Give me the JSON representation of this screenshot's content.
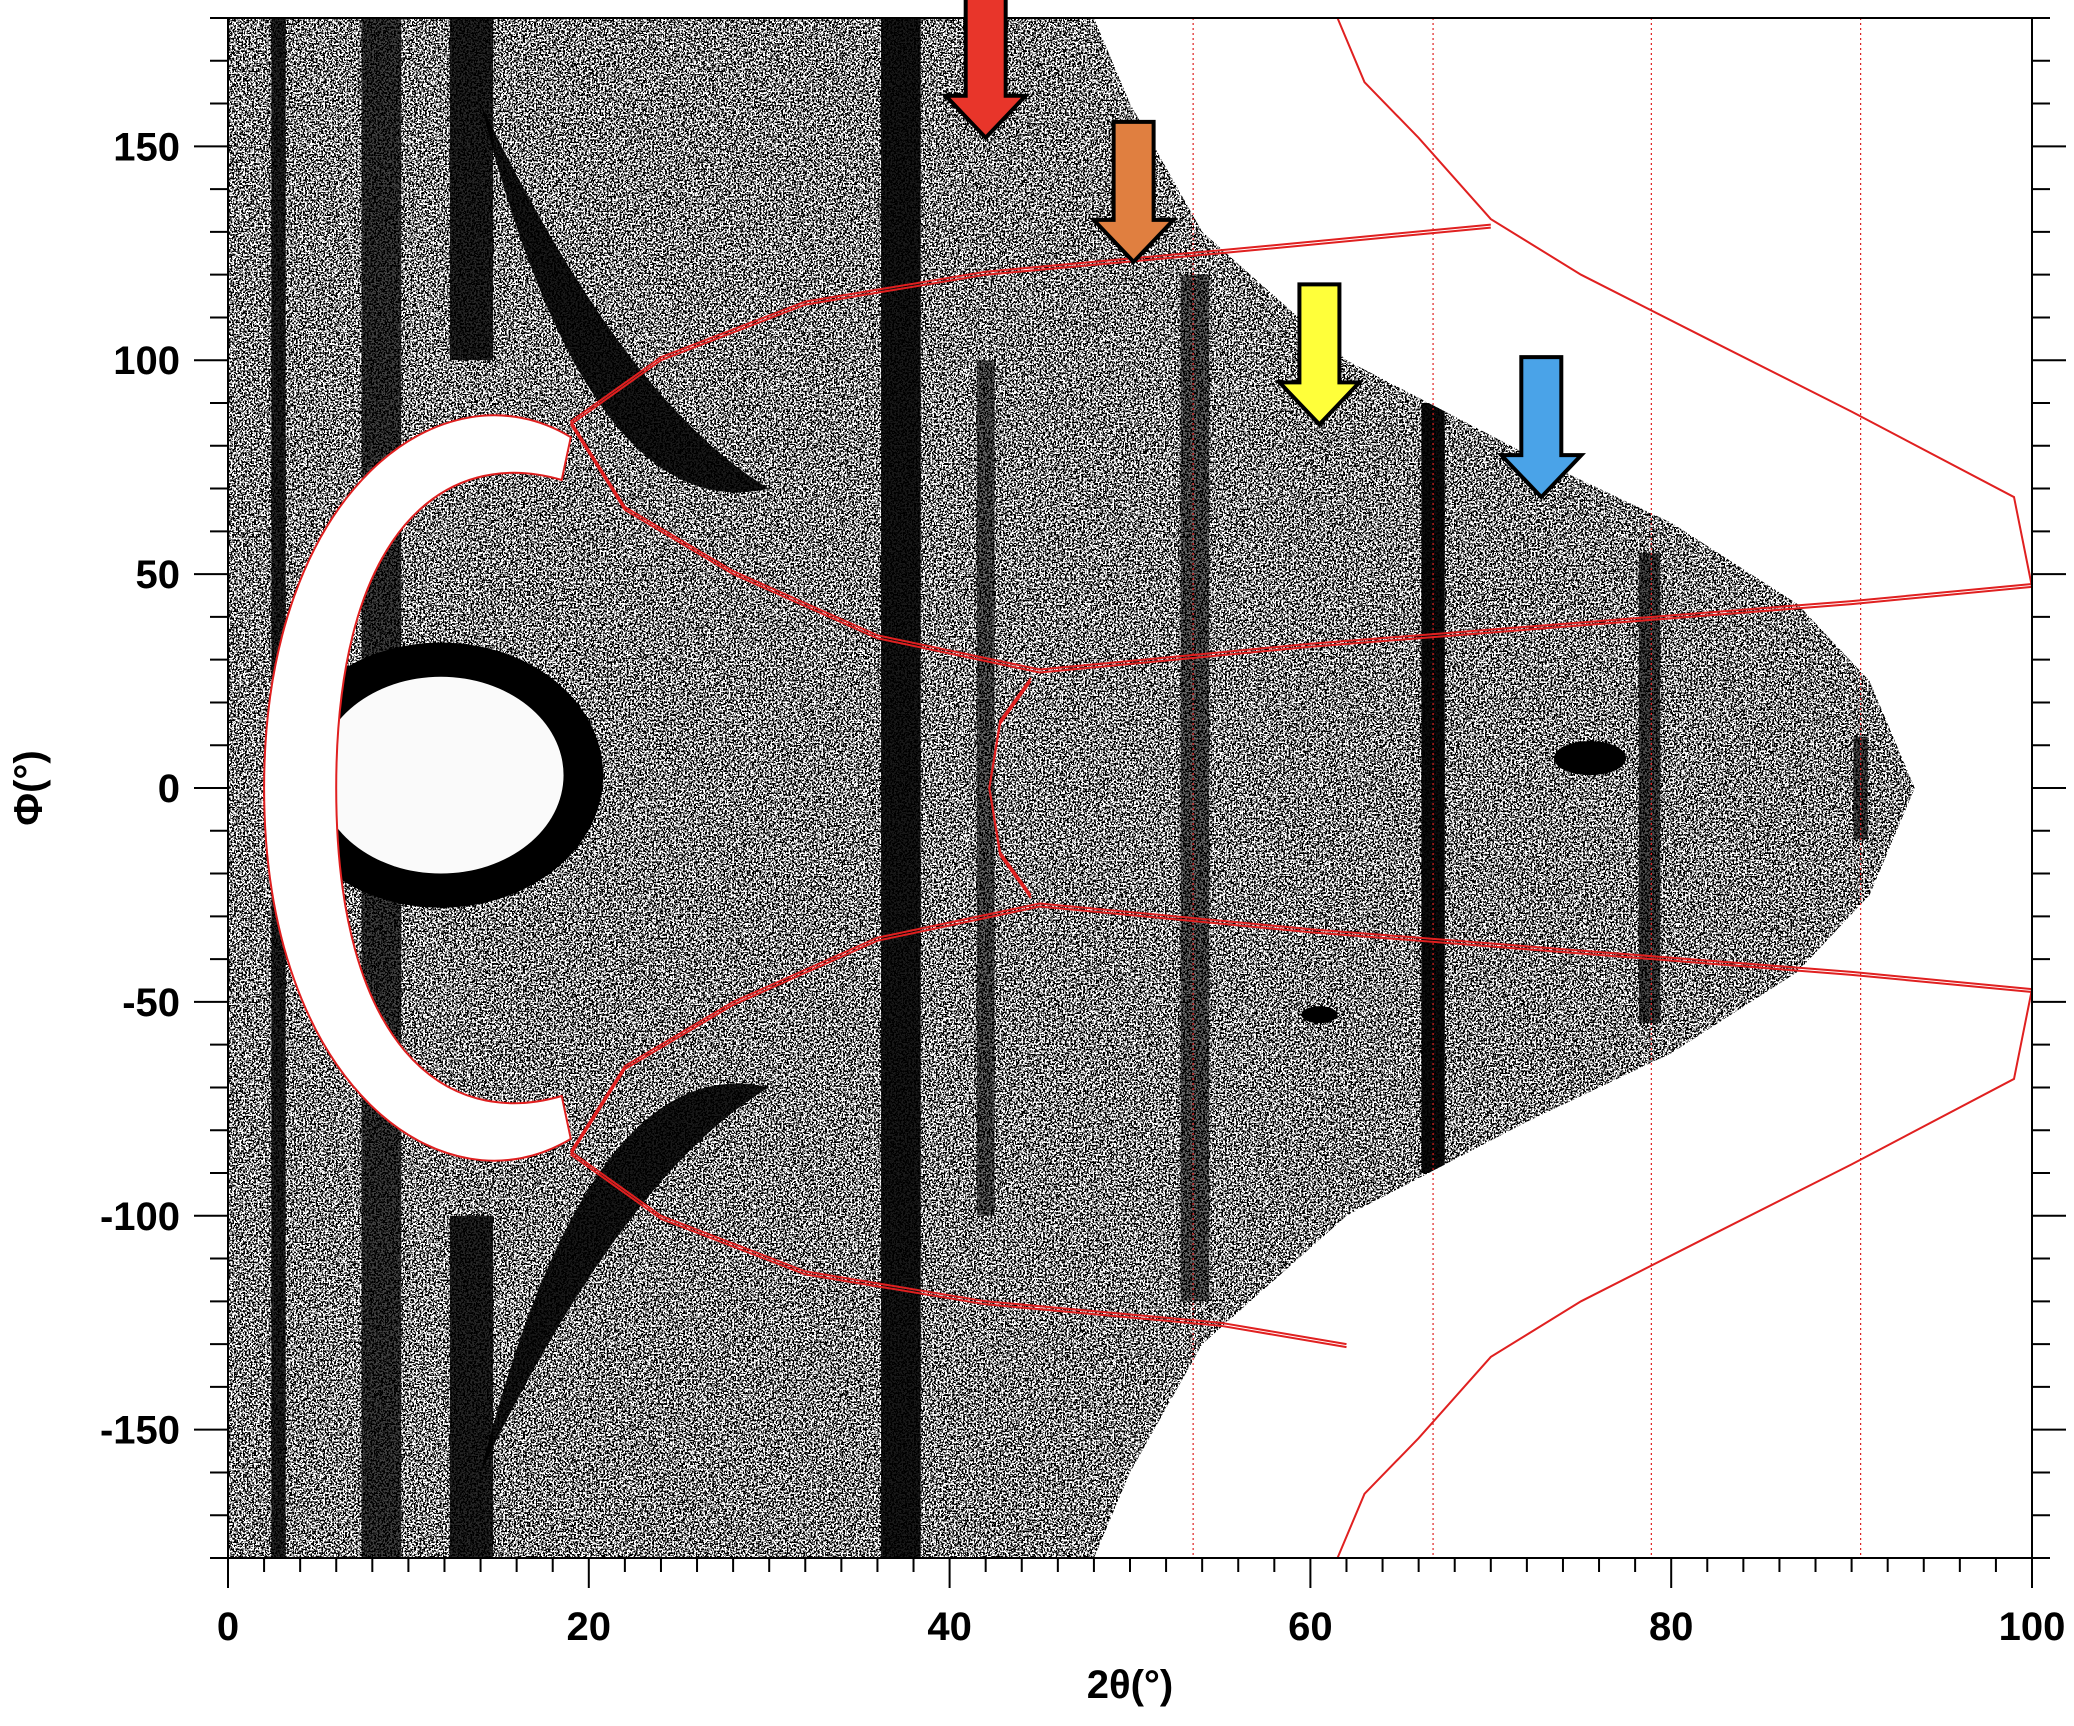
{
  "chart_data": {
    "type": "heatmap",
    "xlabel": "2θ(°)",
    "ylabel": "Φ(°)",
    "xlim": [
      0,
      100
    ],
    "ylim": [
      -180,
      180
    ],
    "x_ticks": [
      0,
      20,
      40,
      60,
      80,
      100
    ],
    "y_ticks": [
      -150,
      -100,
      -50,
      0,
      50,
      100,
      150
    ],
    "x_tick_labels": [
      "0",
      "20",
      "40",
      "60",
      "80",
      "100"
    ],
    "y_tick_labels": [
      "-150",
      "-100",
      "-50",
      "0",
      "50",
      "100",
      "150"
    ],
    "x_minor_step": 2,
    "y_minor_step": 10,
    "grid": "vertical dotted red lines",
    "vertical_reference_lines_x": [
      53.5,
      66.8,
      78.9,
      90.5
    ],
    "pattern_outline_at_y0_x": 93.5,
    "pattern_bright_region": {
      "x_center": 11.8,
      "y_center": 3,
      "x_halfwidth": 6.8,
      "y_halfwidth": 23
    },
    "detector_boundary_envelope": [
      [
        61.5,
        180
      ],
      [
        63,
        165
      ],
      [
        66,
        152
      ],
      [
        70,
        133
      ],
      [
        75,
        120
      ],
      [
        82,
        105
      ],
      [
        90,
        88
      ],
      [
        99,
        68
      ],
      [
        100,
        47
      ]
    ],
    "arrows": [
      {
        "color": "#e8352a",
        "x": 42,
        "y": 152
      },
      {
        "color": "#e07f40",
        "x": 50.2,
        "y": 123
      },
      {
        "color": "#ffff3a",
        "x": 60.5,
        "y": 85
      },
      {
        "color": "#4aa3e8",
        "x": 72.8,
        "y": 68
      }
    ],
    "colors": {
      "overlay_lines": "#e02020",
      "frame": "#000000",
      "background": "#ffffff"
    }
  }
}
